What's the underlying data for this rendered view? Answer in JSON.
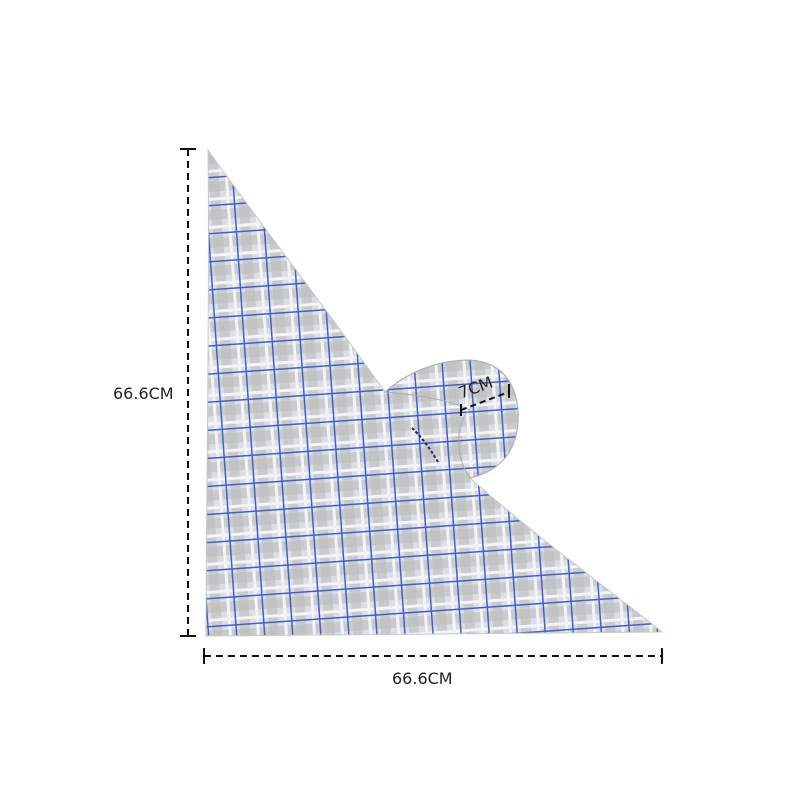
{
  "product": {
    "name": "plaid triangle scarf"
  },
  "dimensions": {
    "height_label": "66.6CM",
    "width_label": "66.6CM",
    "band_label": "7CM"
  },
  "colors": {
    "fabric_base": "#d9dbe3",
    "plaid_gray": "#b8b6b4",
    "plaid_blue": "#3f62c9",
    "dimension_line": "#111111"
  }
}
